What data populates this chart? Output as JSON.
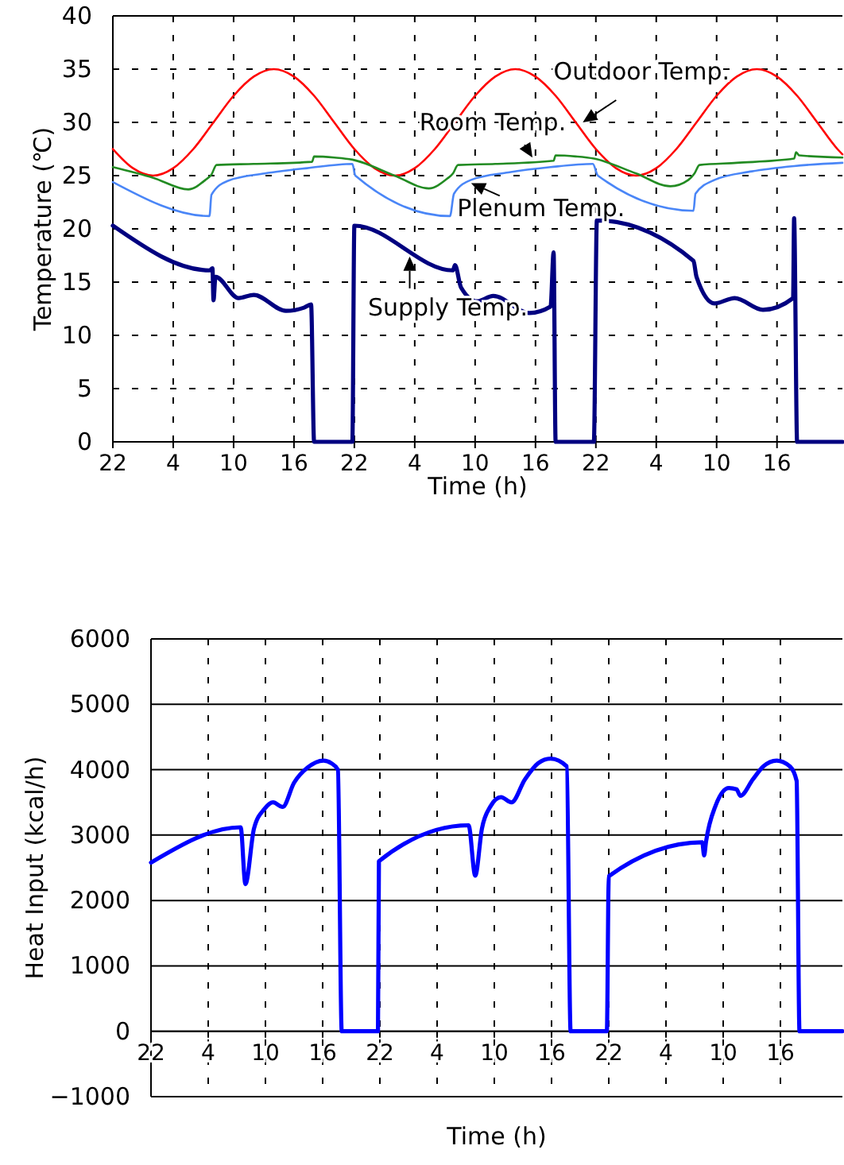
{
  "chart_data": [
    {
      "type": "line",
      "xlabel": "Time (h)",
      "ylabel": "Temperature (℃)",
      "xlim": [
        "2000-01-01T22:00",
        "2000-01-04T22:30"
      ],
      "ylim": [
        0,
        40
      ],
      "yticks": [
        0,
        5,
        10,
        15,
        20,
        25,
        30,
        35,
        40
      ],
      "grid": true,
      "xticks": [
        {
          "value": "2000-01-01T22:00",
          "label": "22"
        },
        {
          "value": "2000-01-02T04:00",
          "label": "4"
        },
        {
          "value": "2000-01-02T10:00",
          "label": "10"
        },
        {
          "value": "2000-01-02T16:00",
          "label": "16"
        },
        {
          "value": "2000-01-02T22:00",
          "label": "22"
        },
        {
          "value": "2000-01-03T04:00",
          "label": "4"
        },
        {
          "value": "2000-01-03T10:00",
          "label": "10"
        },
        {
          "value": "2000-01-03T16:00",
          "label": "16"
        },
        {
          "value": "2000-01-03T22:00",
          "label": "22"
        },
        {
          "value": "2000-01-04T04:00",
          "label": "4"
        },
        {
          "value": "2000-01-04T10:00",
          "label": "10"
        },
        {
          "value": "2000-01-04T16:00",
          "label": "16"
        }
      ],
      "series": [
        {
          "color": "#ff0000",
          "x": [
            "2000-01-01T22:00",
            "2000-01-02T00:00",
            "2000-01-02T02:00",
            "2000-01-02T04:00",
            "2000-01-02T06:00",
            "2000-01-02T08:00",
            "2000-01-02T10:00",
            "2000-01-02T12:00",
            "2000-01-02T14:00",
            "2000-01-02T16:00",
            "2000-01-02T18:00",
            "2000-01-02T20:00",
            "2000-01-02T22:00",
            "2000-01-03T00:00",
            "2000-01-03T02:00",
            "2000-01-03T04:00",
            "2000-01-03T06:00",
            "2000-01-03T08:00",
            "2000-01-03T10:00",
            "2000-01-03T12:00",
            "2000-01-03T14:00",
            "2000-01-03T16:00",
            "2000-01-03T18:00",
            "2000-01-03T20:00",
            "2000-01-03T22:00",
            "2000-01-04T00:00",
            "2000-01-04T02:00",
            "2000-01-04T04:00",
            "2000-01-04T06:00",
            "2000-01-04T08:00",
            "2000-01-04T10:00",
            "2000-01-04T12:00",
            "2000-01-04T14:00",
            "2000-01-04T16:00",
            "2000-01-04T18:00",
            "2000-01-04T20:00",
            "2000-01-04T22:00",
            "2000-01-04T22:30"
          ],
          "values": [
            27.5,
            25.7,
            25,
            25.7,
            27.5,
            30,
            32.5,
            34.3,
            35,
            34.3,
            32.5,
            30,
            27.5,
            25.7,
            25,
            25.7,
            27.5,
            30,
            32.5,
            34.3,
            35,
            34.3,
            32.5,
            30,
            27.5,
            25.7,
            25,
            25.7,
            27.5,
            30,
            32.5,
            34.3,
            35,
            34.3,
            32.5,
            30,
            27.5,
            27
          ]
        },
        {
          "color": "#228b22",
          "x": [
            "2000-01-01T22:00",
            "2000-01-02T02:00",
            "2000-01-02T05:30",
            "2000-01-02T07:12",
            "2000-01-02T07:48",
            "2000-01-02T08:18",
            "2000-01-02T12:00",
            "2000-01-02T17:48",
            "2000-01-02T18:00",
            "2000-01-02T20:00",
            "2000-01-02T21:48",
            "2000-01-03T02:00",
            "2000-01-03T05:24",
            "2000-01-03T07:12",
            "2000-01-03T07:48",
            "2000-01-03T08:18",
            "2000-01-03T12:00",
            "2000-01-03T17:48",
            "2000-01-03T18:00",
            "2000-01-03T20:00",
            "2000-01-03T21:48",
            "2000-01-04T02:00",
            "2000-01-04T05:24",
            "2000-01-04T07:12",
            "2000-01-04T07:48",
            "2000-01-04T08:18",
            "2000-01-04T12:00",
            "2000-01-04T17:42",
            "2000-01-04T17:54",
            "2000-01-04T18:12",
            "2000-01-04T22:30"
          ],
          "values": [
            25.8,
            24.8,
            23.7,
            24.6,
            25.1,
            26,
            26.1,
            26.3,
            26.8,
            26.7,
            26.5,
            25,
            23.8,
            24.7,
            25.2,
            26,
            26.1,
            26.4,
            26.9,
            26.8,
            26.6,
            25.2,
            24,
            24.6,
            25.2,
            26,
            26.2,
            26.6,
            27.2,
            26.9,
            26.7
          ]
        },
        {
          "color": "#4a86f7",
          "x": [
            "2000-01-01T22:00",
            "2000-01-02T07:36",
            "2000-01-02T07:48",
            "2000-01-02T09:24",
            "2000-01-02T13:06",
            "2000-01-02T17:18",
            "2000-01-02T21:48",
            "2000-01-02T22:06",
            "2000-01-03T07:30",
            "2000-01-03T07:54",
            "2000-01-03T09:36",
            "2000-01-03T13:18",
            "2000-01-03T17:30",
            "2000-01-03T21:42",
            "2000-01-03T22:12",
            "2000-01-04T07:42",
            "2000-01-04T07:54",
            "2000-01-04T09:48",
            "2000-01-04T13:30",
            "2000-01-04T17:42",
            "2000-01-04T22:30"
          ],
          "values": [
            24.4,
            21.2,
            23.2,
            24.5,
            25.2,
            25.7,
            26.1,
            25,
            21.2,
            23.3,
            24.6,
            25.3,
            25.8,
            26.1,
            25,
            21.7,
            23.3,
            24.6,
            25.4,
            25.9,
            26.2
          ]
        },
        {
          "color": "#000080",
          "x": [
            "2000-01-01T22:00",
            "2000-01-02T07:36",
            "2000-01-02T07:54",
            "2000-01-02T08:00",
            "2000-01-02T08:12",
            "2000-01-02T10:30",
            "2000-01-02T12:00",
            "2000-01-02T15:12",
            "2000-01-02T17:00",
            "2000-01-02T17:42",
            "2000-01-02T18:00",
            "2000-01-02T21:48",
            "2000-01-02T22:00",
            "2000-01-03T07:48",
            "2000-01-03T08:00",
            "2000-01-03T08:36",
            "2000-01-03T10:12",
            "2000-01-03T11:48",
            "2000-01-03T15:24",
            "2000-01-03T17:30",
            "2000-01-03T17:48",
            "2000-01-03T18:00",
            "2000-01-03T21:48",
            "2000-01-03T22:06",
            "2000-01-04T07:42",
            "2000-01-04T08:00",
            "2000-01-04T09:48",
            "2000-01-04T11:48",
            "2000-01-04T14:36",
            "2000-01-04T17:36",
            "2000-01-04T17:42",
            "2000-01-04T18:00",
            "2000-01-04T22:30"
          ],
          "values": [
            20.3,
            16.1,
            16.3,
            13.3,
            15.5,
            13.5,
            13.8,
            12.3,
            12.6,
            12.9,
            0,
            0,
            20.3,
            16.1,
            16.6,
            14.5,
            13.2,
            13.7,
            12.1,
            12.7,
            17.8,
            0,
            0,
            20.8,
            17,
            15.5,
            13,
            13.5,
            12.4,
            13.5,
            21,
            0,
            0
          ]
        }
      ],
      "annotations": [
        {
          "text": "Outdoor Temp.",
          "x": "2000-01-03T20:42",
          "y": 30
        },
        {
          "text": "Room Temp.",
          "x": "2000-01-03T15:42",
          "y": 26.7
        },
        {
          "text": "Plenum Temp.",
          "x": "2000-01-03T09:36",
          "y": 24.3
        },
        {
          "text": "Supply Temp.",
          "x": "2000-01-03T03:30",
          "y": 17.4
        }
      ]
    },
    {
      "type": "line",
      "xlabel": "Time (h)",
      "ylabel": "Heat Input (kcal/h)",
      "xlim": [
        "2000-01-01T22:00",
        "2000-01-04T22:30"
      ],
      "ylim": [
        -1000,
        6000
      ],
      "yticks": [
        {
          "value": -1000,
          "label": "−1000"
        },
        0,
        1000,
        2000,
        3000,
        4000,
        5000,
        6000
      ],
      "grid": true,
      "xticks": [
        {
          "value": "2000-01-01T22:00",
          "label": "22"
        },
        {
          "value": "2000-01-02T04:00",
          "label": "4"
        },
        {
          "value": "2000-01-02T10:00",
          "label": "10"
        },
        {
          "value": "2000-01-02T16:00",
          "label": "16"
        },
        {
          "value": "2000-01-02T22:00",
          "label": "22"
        },
        {
          "value": "2000-01-03T04:00",
          "label": "4"
        },
        {
          "value": "2000-01-03T10:00",
          "label": "10"
        },
        {
          "value": "2000-01-03T16:00",
          "label": "16"
        },
        {
          "value": "2000-01-03T22:00",
          "label": "22"
        },
        {
          "value": "2000-01-04T04:00",
          "label": "4"
        },
        {
          "value": "2000-01-04T10:00",
          "label": "10"
        },
        {
          "value": "2000-01-04T16:00",
          "label": "16"
        }
      ],
      "series": [
        {
          "color": "#0000ff",
          "x": [
            "2000-01-01T22:00",
            "2000-01-02T07:24",
            "2000-01-02T07:54",
            "2000-01-02T08:48",
            "2000-01-02T09:54",
            "2000-01-02T10:48",
            "2000-01-02T11:48",
            "2000-01-02T13:00",
            "2000-01-02T14:24",
            "2000-01-02T16:06",
            "2000-01-02T16:54",
            "2000-01-02T17:36",
            "2000-01-02T18:00",
            "2000-01-02T21:48",
            "2000-01-02T21:54",
            "2000-01-03T07:18",
            "2000-01-03T08:00",
            "2000-01-03T08:42",
            "2000-01-03T09:36",
            "2000-01-03T10:42",
            "2000-01-03T11:48",
            "2000-01-03T13:12",
            "2000-01-03T14:36",
            "2000-01-03T15:54",
            "2000-01-03T17:36",
            "2000-01-03T18:00",
            "2000-01-03T21:48",
            "2000-01-03T22:00",
            "2000-01-04T07:48",
            "2000-01-04T08:00",
            "2000-01-04T08:12",
            "2000-01-04T09:12",
            "2000-01-04T10:36",
            "2000-01-04T11:24",
            "2000-01-04T11:48",
            "2000-01-04T13:06",
            "2000-01-04T14:12",
            "2000-01-04T15:36",
            "2000-01-04T17:00",
            "2000-01-04T17:42",
            "2000-01-04T18:00",
            "2000-01-04T22:30"
          ],
          "values": [
            2580,
            3120,
            2250,
            3100,
            3400,
            3500,
            3430,
            3800,
            4030,
            4140,
            4100,
            4000,
            0,
            0,
            2600,
            3150,
            2380,
            3100,
            3440,
            3580,
            3500,
            3850,
            4100,
            4170,
            4050,
            0,
            0,
            2370,
            2890,
            2690,
            2900,
            3450,
            3720,
            3700,
            3600,
            3850,
            4050,
            4140,
            4050,
            3830,
            0,
            0
          ]
        }
      ]
    }
  ]
}
